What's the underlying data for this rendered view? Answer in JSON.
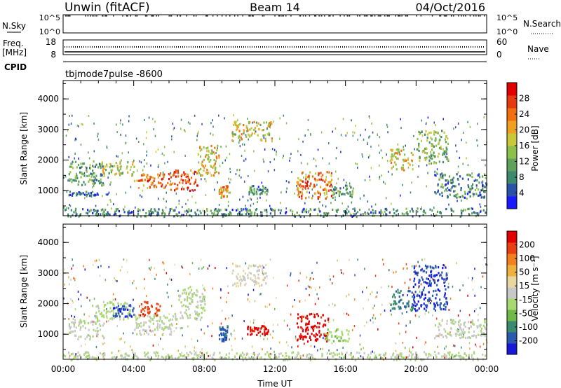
{
  "header": {
    "station": "Unwin (fitACF)",
    "beam": "Beam 14",
    "date": "04/Oct/2016"
  },
  "top_panels": {
    "nsky_label": "N.Sky",
    "nsky_ticks": [
      "10^5",
      "10^0"
    ],
    "nsearch_label": "N.Search",
    "freq_label_1": "Freq.",
    "freq_label_2": "[MHz]",
    "freq_ticks": [
      "18",
      "8"
    ],
    "nave_ticks": [
      "60",
      "0"
    ],
    "nave_label": "Nave",
    "cpid_label": "CPID",
    "cpid_text": "tbjmode7pulse  -8600"
  },
  "colors": {
    "power_scale": [
      "#1a1aff",
      "#2a52a8",
      "#3b8a6e",
      "#5fa05a",
      "#8cc04a",
      "#c8c83a",
      "#f0a020",
      "#f07010",
      "#e83a10",
      "#e00000"
    ],
    "velocity_scale": [
      "#1818d8",
      "#2a5ab0",
      "#3a8a70",
      "#70b848",
      "#a8d870",
      "#c8c8c8",
      "#e8d8a0",
      "#f0b040",
      "#f08020",
      "#e84010",
      "#e00000"
    ]
  },
  "chart_data": [
    {
      "type": "heatmap",
      "name": "power-panel",
      "xlabel": "",
      "ylabel": "Slant Range [km]",
      "xlim_hours": [
        0,
        24
      ],
      "ylim": [
        180,
        4600
      ],
      "yticks": [
        "4000",
        "3000",
        "2000",
        "1000"
      ],
      "xticks": [],
      "colorbar": {
        "label": "Power [dB]",
        "tick_labels": [
          "28",
          "24",
          "20",
          "16",
          "12",
          "8",
          "4"
        ],
        "range": [
          0,
          30
        ]
      },
      "echo_regions": [
        {
          "t0": 0.3,
          "t1": 2.3,
          "r0": 1200,
          "r1": 2000,
          "v": 10
        },
        {
          "t0": 0.3,
          "t1": 2.0,
          "r0": 850,
          "r1": 1000,
          "v": 6
        },
        {
          "t0": 2.0,
          "t1": 4.0,
          "r0": 1500,
          "r1": 2000,
          "v": 14
        },
        {
          "t0": 4.0,
          "t1": 6.0,
          "r0": 1100,
          "r1": 1600,
          "v": 22
        },
        {
          "t0": 6.0,
          "t1": 7.6,
          "r0": 1000,
          "r1": 1700,
          "v": 24
        },
        {
          "t0": 7.6,
          "t1": 8.8,
          "r0": 1500,
          "r1": 2500,
          "v": 18
        },
        {
          "t0": 8.8,
          "t1": 9.3,
          "r0": 800,
          "r1": 1200,
          "v": 20
        },
        {
          "t0": 9.5,
          "t1": 11.8,
          "r0": 2650,
          "r1": 3300,
          "v": 16
        },
        {
          "t0": 10.5,
          "t1": 11.6,
          "r0": 900,
          "r1": 1200,
          "v": 8
        },
        {
          "t0": 13.2,
          "t1": 15.2,
          "r0": 750,
          "r1": 1700,
          "v": 22
        },
        {
          "t0": 15.2,
          "t1": 16.4,
          "r0": 800,
          "r1": 1200,
          "v": 10
        },
        {
          "t0": 18.5,
          "t1": 19.8,
          "r0": 1700,
          "r1": 2400,
          "v": 18
        },
        {
          "t0": 20.0,
          "t1": 21.8,
          "r0": 1900,
          "r1": 3000,
          "v": 12
        },
        {
          "t0": 21.0,
          "t1": 24.0,
          "r0": 800,
          "r1": 1600,
          "v": 8
        },
        {
          "t0": 0.0,
          "t1": 24.0,
          "r0": 180,
          "r1": 450,
          "v": 8
        }
      ]
    },
    {
      "type": "heatmap",
      "name": "velocity-panel",
      "xlabel": "Time UT",
      "ylabel": "Slant Range [km]",
      "xlim_hours": [
        0,
        24
      ],
      "ylim": [
        180,
        4600
      ],
      "yticks": [
        "4000",
        "3000",
        "2000",
        "1000"
      ],
      "xticks": [
        "00:00",
        "04:00",
        "08:00",
        "12:00",
        "16:00",
        "20:00",
        "00:00"
      ],
      "colorbar": {
        "label": "Velocity [m s⁻¹]",
        "tick_labels": [
          "200",
          "100",
          "50",
          "15",
          "-15",
          "-50",
          "-100",
          "-200"
        ],
        "range": [
          -250,
          250
        ]
      },
      "echo_regions": [
        {
          "t0": 0.3,
          "t1": 2.3,
          "r0": 850,
          "r1": 1500,
          "v": -10
        },
        {
          "t0": 1.8,
          "t1": 3.8,
          "r0": 1500,
          "r1": 2100,
          "v": -30
        },
        {
          "t0": 2.8,
          "t1": 4.0,
          "r0": 1600,
          "r1": 2000,
          "v": -200
        },
        {
          "t0": 4.2,
          "t1": 5.5,
          "r0": 1600,
          "r1": 2100,
          "v": 180
        },
        {
          "t0": 4.0,
          "t1": 6.5,
          "r0": 1000,
          "r1": 1700,
          "v": -15
        },
        {
          "t0": 6.5,
          "t1": 8.0,
          "r0": 1500,
          "r1": 2600,
          "v": -20
        },
        {
          "t0": 8.8,
          "t1": 9.3,
          "r0": 800,
          "r1": 1300,
          "v": -180
        },
        {
          "t0": 9.5,
          "t1": 11.5,
          "r0": 2600,
          "r1": 3300,
          "v": 20
        },
        {
          "t0": 10.4,
          "t1": 11.7,
          "r0": 1000,
          "r1": 1300,
          "v": 220
        },
        {
          "t0": 13.2,
          "t1": 15.0,
          "r0": 750,
          "r1": 1700,
          "v": 230
        },
        {
          "t0": 14.8,
          "t1": 16.2,
          "r0": 800,
          "r1": 1200,
          "v": -60
        },
        {
          "t0": 18.5,
          "t1": 19.8,
          "r0": 1800,
          "r1": 2500,
          "v": -150
        },
        {
          "t0": 19.8,
          "t1": 21.8,
          "r0": 1800,
          "r1": 3300,
          "v": -200
        },
        {
          "t0": 21.0,
          "t1": 24.0,
          "r0": 900,
          "r1": 1500,
          "v": -12
        },
        {
          "t0": 0.0,
          "t1": 24.0,
          "r0": 180,
          "r1": 450,
          "v": -20
        }
      ]
    }
  ]
}
